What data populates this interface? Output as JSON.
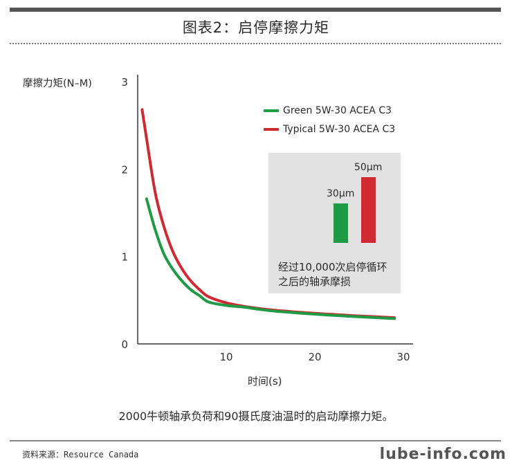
{
  "header": {
    "title": "图表2：启停摩擦力矩"
  },
  "colors": {
    "green": "#1f9a45",
    "red": "#cf2a31",
    "inset_bg": "#e2e2e2",
    "axis": "#333333"
  },
  "chart_data": {
    "type": "line",
    "title": "图表2：启停摩擦力矩",
    "ylabel": "摩擦力矩(N–M)",
    "xlabel": "时间(s)",
    "xlim": [
      0,
      30
    ],
    "ylim": [
      0,
      3
    ],
    "x_ticks": [
      10,
      20,
      30
    ],
    "y_ticks": [
      0,
      1,
      2,
      3
    ],
    "grid": false,
    "legend_position": "top-right",
    "series": [
      {
        "name": "Green 5W-30 ACEA C3",
        "color": "#1f9a45",
        "x": [
          1,
          2,
          3,
          4,
          5,
          6,
          7,
          8,
          10,
          12,
          15,
          20,
          25,
          29
        ],
        "y": [
          1.66,
          1.3,
          1.02,
          0.85,
          0.72,
          0.62,
          0.55,
          0.48,
          0.44,
          0.42,
          0.38,
          0.34,
          0.31,
          0.29
        ]
      },
      {
        "name": "Typical 5W-30 ACEA C3",
        "color": "#cf2a31",
        "x": [
          0.5,
          1,
          2,
          3,
          4,
          5,
          6,
          7,
          8,
          10,
          12,
          15,
          20,
          25,
          29
        ],
        "y": [
          2.68,
          2.35,
          1.72,
          1.33,
          1.05,
          0.86,
          0.72,
          0.62,
          0.54,
          0.47,
          0.43,
          0.39,
          0.35,
          0.32,
          0.3
        ]
      }
    ],
    "inset": {
      "type": "bar",
      "bars": [
        {
          "label": "30μm",
          "value": 30,
          "color": "#1f9a45"
        },
        {
          "label": "50μm",
          "value": 50,
          "color": "#cf2a31"
        }
      ],
      "note_lines": [
        "经过10,000次启停循环",
        "之后的轴承摩损"
      ]
    }
  },
  "caption": "2000牛顿轴承负荷和90摄氏度油温时的启动摩擦力矩。",
  "source": "资料来源：Resource Canada",
  "watermark": "lube-info.com"
}
